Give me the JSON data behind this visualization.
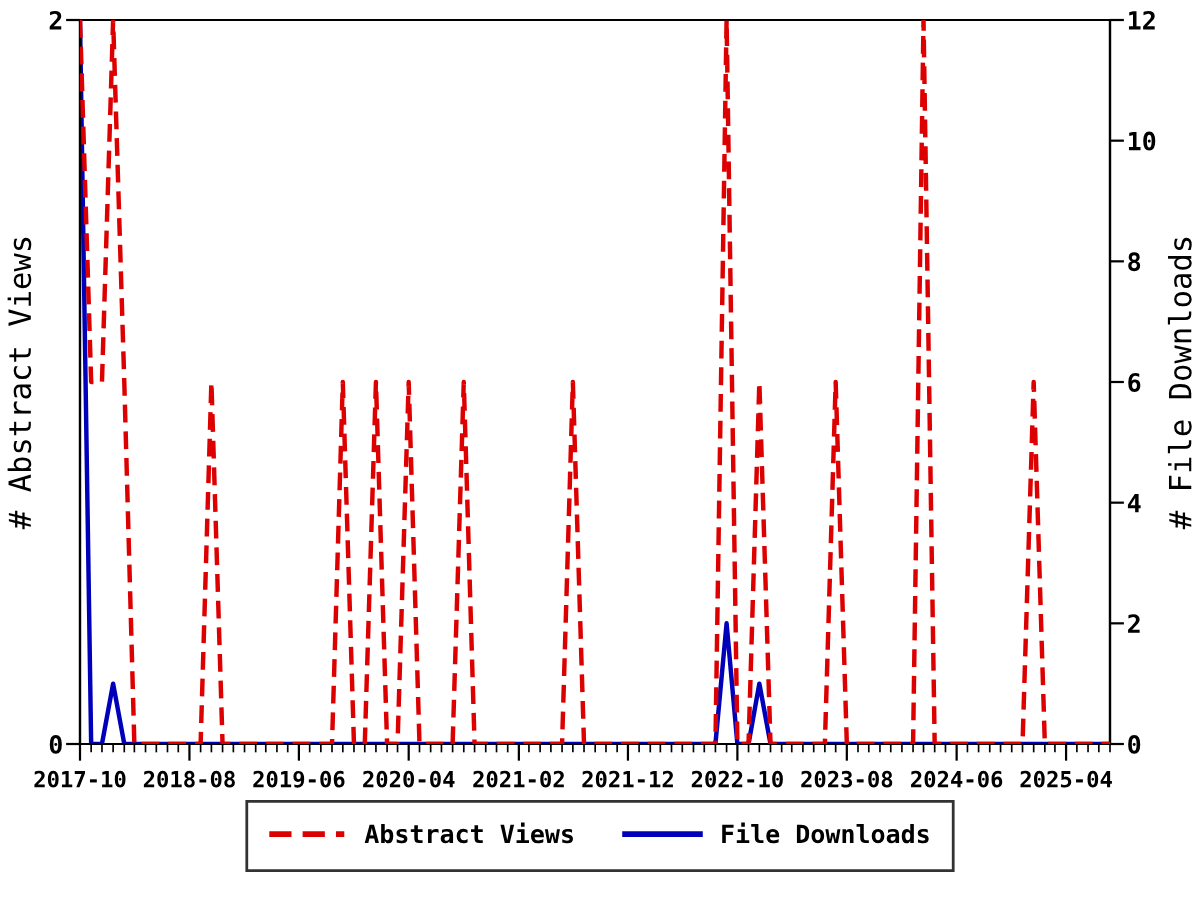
{
  "chart_data": {
    "type": "line",
    "xlabel": null,
    "ylabel": "# Abstract Views",
    "y2label": "# File Downloads",
    "x": [
      "2017-10",
      "2017-11",
      "2017-12",
      "2018-01",
      "2018-02",
      "2018-03",
      "2018-04",
      "2018-05",
      "2018-06",
      "2018-07",
      "2018-08",
      "2018-09",
      "2018-10",
      "2018-11",
      "2018-12",
      "2019-01",
      "2019-02",
      "2019-03",
      "2019-04",
      "2019-05",
      "2019-06",
      "2019-07",
      "2019-08",
      "2019-09",
      "2019-10",
      "2019-11",
      "2019-12",
      "2020-01",
      "2020-02",
      "2020-03",
      "2020-04",
      "2020-05",
      "2020-06",
      "2020-07",
      "2020-08",
      "2020-09",
      "2020-10",
      "2020-11",
      "2020-12",
      "2021-01",
      "2021-02",
      "2021-03",
      "2021-04",
      "2021-05",
      "2021-06",
      "2021-07",
      "2021-08",
      "2021-09",
      "2021-10",
      "2021-11",
      "2021-12",
      "2022-01",
      "2022-02",
      "2022-03",
      "2022-04",
      "2022-05",
      "2022-06",
      "2022-07",
      "2022-08",
      "2022-09",
      "2022-10",
      "2022-11",
      "2022-12",
      "2023-01",
      "2023-02",
      "2023-03",
      "2023-04",
      "2023-05",
      "2023-06",
      "2023-07",
      "2023-08",
      "2023-09",
      "2023-10",
      "2023-11",
      "2023-12",
      "2024-01",
      "2024-02",
      "2024-03",
      "2024-04",
      "2024-05",
      "2024-06",
      "2024-07",
      "2024-08",
      "2024-09",
      "2024-10",
      "2024-11",
      "2024-12",
      "2025-01",
      "2025-02",
      "2025-03",
      "2025-04",
      "2025-05",
      "2025-06",
      "2025-07",
      "2025-08"
    ],
    "series": [
      {
        "name": "Abstract Views",
        "color": "#dd0000",
        "line_style": "dashed",
        "axis": "y",
        "values": [
          2,
          1,
          1,
          2,
          1,
          0,
          0,
          0,
          0,
          0,
          0,
          0,
          1,
          0,
          0,
          0,
          0,
          0,
          0,
          0,
          0,
          0,
          0,
          0,
          1,
          0,
          0,
          1,
          0,
          0,
          1,
          0,
          0,
          0,
          0,
          1,
          0,
          0,
          0,
          0,
          0,
          0,
          0,
          0,
          0,
          1,
          0,
          0,
          0,
          0,
          0,
          0,
          0,
          0,
          0,
          0,
          0,
          0,
          0,
          2,
          0,
          0,
          1,
          0,
          0,
          0,
          0,
          0,
          0,
          1,
          0,
          0,
          0,
          0,
          0,
          0,
          0,
          2,
          0,
          0,
          0,
          0,
          0,
          0,
          0,
          0,
          0,
          1,
          0,
          0,
          0,
          0,
          0,
          0,
          0
        ]
      },
      {
        "name": "File Downloads",
        "color": "#0000bb",
        "line_style": "solid",
        "axis": "y2",
        "values": [
          12,
          0,
          0,
          1,
          0,
          0,
          0,
          0,
          0,
          0,
          0,
          0,
          0,
          0,
          0,
          0,
          0,
          0,
          0,
          0,
          0,
          0,
          0,
          0,
          0,
          0,
          0,
          0,
          0,
          0,
          0,
          0,
          0,
          0,
          0,
          0,
          0,
          0,
          0,
          0,
          0,
          0,
          0,
          0,
          0,
          0,
          0,
          0,
          0,
          0,
          0,
          0,
          0,
          0,
          0,
          0,
          0,
          0,
          0,
          2,
          0,
          0,
          1,
          0,
          0,
          0,
          0,
          0,
          0,
          0,
          0,
          0,
          0,
          0,
          0,
          0,
          0,
          0,
          0,
          0,
          0,
          0,
          0,
          0,
          0,
          0,
          0,
          0,
          0,
          0,
          0,
          0,
          0,
          0,
          0
        ]
      }
    ],
    "xlim": [
      "2017-10",
      "2025-08"
    ],
    "xticks": [
      "2017-10",
      "2018-08",
      "2019-06",
      "2020-04",
      "2021-02",
      "2021-12",
      "2022-10",
      "2023-08",
      "2024-06",
      "2025-04"
    ],
    "ylim": [
      0,
      2
    ],
    "yticks": [
      0,
      2
    ],
    "y2lim": [
      0,
      12
    ],
    "y2ticks": [
      0,
      2,
      4,
      6,
      8,
      10,
      12
    ],
    "grid": false,
    "legend": "bottom",
    "marker": "none"
  }
}
